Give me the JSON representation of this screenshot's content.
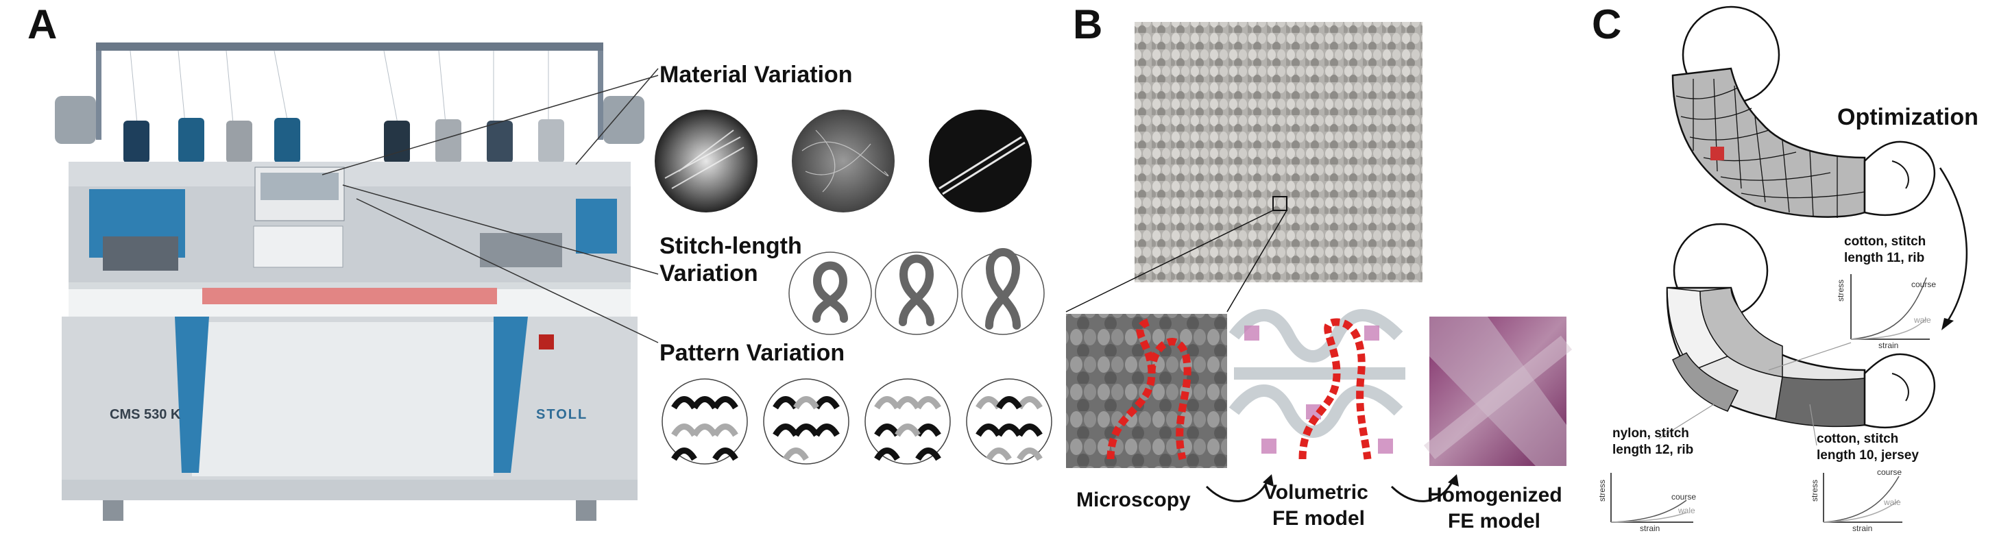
{
  "panels": {
    "a": {
      "letter": "A",
      "machine": {
        "model_plate": "CMS 530 K",
        "brand_plate": "STOLL"
      },
      "labels": {
        "material": "Material Variation",
        "stitch_line1": "Stitch-length",
        "stitch_line2": "Variation",
        "pattern": "Pattern Variation"
      }
    },
    "b": {
      "letter": "B",
      "labels": {
        "microscopy": "Microscopy",
        "volumetric_line1": "Volumetric",
        "volumetric_line2": "FE model",
        "homogenized_line1": "Homogenized",
        "homogenized_line2": "FE model"
      }
    },
    "c": {
      "letter": "C",
      "optimization": "Optimization",
      "annotations": {
        "upper": {
          "line1": "cotton, stitch",
          "line2": "length 11, rib"
        },
        "left": {
          "line1": "nylon, stitch",
          "line2": "length 12, rib"
        },
        "right": {
          "line1": "cotton, stitch",
          "line2": "length 10, jersey"
        }
      },
      "curve_labels": {
        "stress": "stress",
        "strain": "strain",
        "course": "course",
        "wale": "wale"
      }
    }
  },
  "colors": {
    "machine_blue": "#2f7fb2",
    "accent_red": "#e0221f",
    "knit_magenta": "#7e2a66",
    "highlight_red": "#cc3333"
  }
}
